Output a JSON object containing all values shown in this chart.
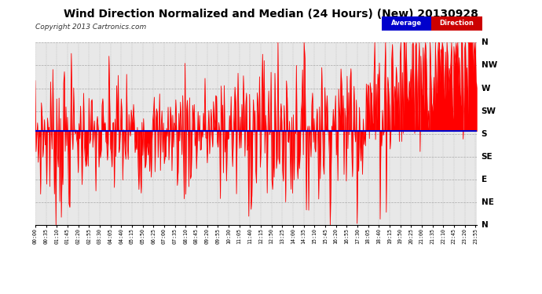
{
  "title": "Wind Direction Normalized and Median (24 Hours) (New) 20130928",
  "copyright": "Copyright 2013 Cartronics.com",
  "background_color": "#ffffff",
  "plot_bg_color": "#e8e8e8",
  "grid_color": "#aaaaaa",
  "line_color": "#ff0000",
  "median_color": "#0000cc",
  "y_labels": [
    "N",
    "NW",
    "W",
    "SW",
    "S",
    "SE",
    "E",
    "NE",
    "N"
  ],
  "y_values": [
    360,
    315,
    270,
    225,
    180,
    135,
    90,
    45,
    0
  ],
  "ylim": [
    0,
    360
  ],
  "legend_avg_bg": "#0000cc",
  "legend_dir_bg": "#cc0000",
  "legend_text_color": "#ffffff",
  "title_fontsize": 10,
  "copyright_fontsize": 6.5,
  "axis_label_fontsize": 7.5,
  "median_value": 185
}
